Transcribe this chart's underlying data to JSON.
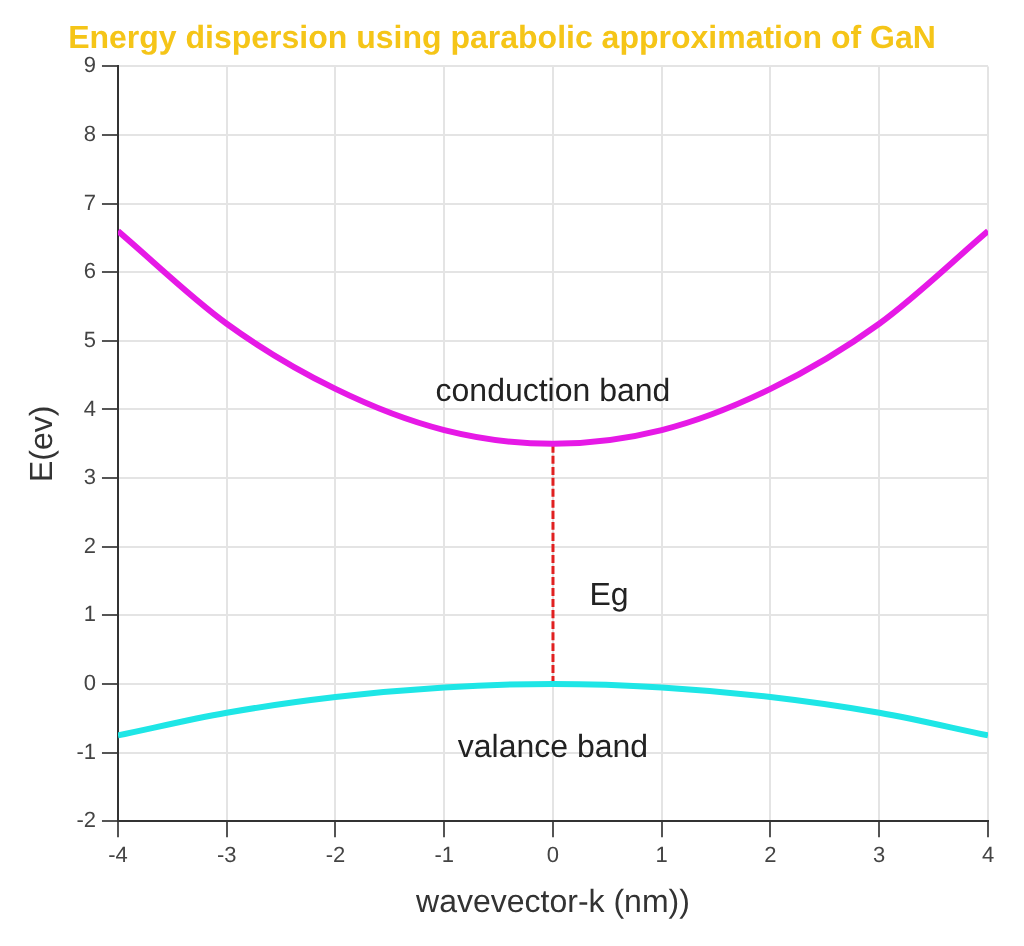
{
  "chart_data": {
    "type": "line",
    "title": "Energy dispersion using parabolic approximation of GaN",
    "xlabel": "wavevector-k (nm))",
    "ylabel": "E(ev)",
    "series": [
      {
        "color": "#e619e6",
        "x": [
          -4,
          -3,
          -2,
          -1,
          0,
          1,
          2,
          3,
          4
        ],
        "values": [
          6.6,
          5.25,
          4.3,
          3.7,
          3.5,
          3.7,
          4.3,
          5.25,
          6.6
        ]
      },
      {
        "color": "#1ee6e6",
        "x": [
          -4,
          -3,
          -2,
          -1,
          0,
          1,
          2,
          3,
          4
        ],
        "values": [
          -0.75,
          -0.42,
          -0.19,
          -0.05,
          0,
          -0.05,
          -0.19,
          -0.42,
          -0.75
        ]
      },
      {
        "color": "#e02020",
        "line_style": "dashed",
        "x": [
          0,
          0
        ],
        "values": [
          0,
          3.5
        ]
      }
    ],
    "annotations": [
      "conduction band",
      "Eg",
      "valance band"
    ],
    "xlim": [
      -4,
      4
    ],
    "xticks": [
      -4,
      -3,
      -2,
      -1,
      0,
      1,
      2,
      3,
      4
    ],
    "ylim": [
      -2,
      9
    ],
    "yticks": [
      -2,
      -1,
      0,
      1,
      2,
      3,
      4,
      5,
      6,
      7,
      8,
      9
    ],
    "grid": true,
    "legend": false
  }
}
